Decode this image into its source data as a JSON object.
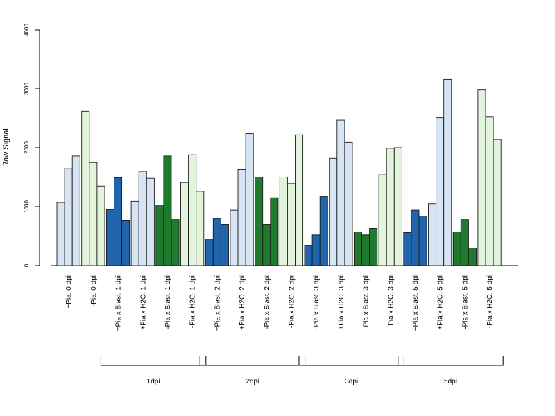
{
  "chart_data": {
    "type": "bar",
    "title": "",
    "xlabel": "",
    "ylabel": "Raw Signal",
    "ylim": [
      0,
      4000
    ],
    "yticks": [
      "0",
      "1000",
      "2000",
      "3000",
      "4000"
    ],
    "grid": false,
    "legend": "none",
    "colors": {
      "plus_pia_blast": "#2166ac",
      "plus_pia_h2o": "#d6e4f4",
      "minus_pia_blast": "#1f7a2e",
      "minus_pia_h2o": "#e2f5dc",
      "edge": "#1a1a1a"
    },
    "groups": [
      {
        "label": "+Pia, 0 dpi",
        "color": "plus_pia_h2o",
        "values": [
          1070,
          1650,
          1860
        ]
      },
      {
        "label": "-Pia, 0 dpi",
        "color": "minus_pia_h2o",
        "values": [
          2620,
          1750,
          1350
        ]
      },
      {
        "label": "+Pia x Blast, 1 dpi",
        "color": "plus_pia_blast",
        "values": [
          950,
          1490,
          760
        ]
      },
      {
        "label": "+Pia x H2O, 1 dpi",
        "color": "plus_pia_h2o",
        "values": [
          1090,
          1600,
          1480
        ]
      },
      {
        "label": "-Pia x Blast, 1 dpi",
        "color": "minus_pia_blast",
        "values": [
          1030,
          1860,
          780
        ]
      },
      {
        "label": "-Pia x H2O, 1 dpi",
        "color": "minus_pia_h2o",
        "values": [
          1410,
          1880,
          1260
        ]
      },
      {
        "label": "+Pia x Blast, 2 dpi",
        "color": "plus_pia_blast",
        "values": [
          450,
          800,
          700
        ]
      },
      {
        "label": "+Pia x H2O, 2 dpi",
        "color": "plus_pia_h2o",
        "values": [
          940,
          1630,
          2240
        ]
      },
      {
        "label": "-Pia x Blast, 2 dpi",
        "color": "minus_pia_blast",
        "values": [
          1500,
          700,
          1150
        ]
      },
      {
        "label": "-Pia x H2O, 2 dpi",
        "color": "minus_pia_h2o",
        "values": [
          1500,
          1390,
          2220
        ]
      },
      {
        "label": "+Pia x Blast, 3 dpi",
        "color": "plus_pia_blast",
        "values": [
          340,
          520,
          1170
        ]
      },
      {
        "label": "+Pia x H2O, 3 dpi",
        "color": "plus_pia_h2o",
        "values": [
          1820,
          2470,
          2090
        ]
      },
      {
        "label": "-Pia x Blast, 3 dpi",
        "color": "minus_pia_blast",
        "values": [
          570,
          520,
          630
        ]
      },
      {
        "label": "-Pia x H2O, 3 dpi",
        "color": "minus_pia_h2o",
        "values": [
          1540,
          1990,
          2000
        ]
      },
      {
        "label": "+Pia x Blast, 5 dpi",
        "color": "plus_pia_blast",
        "values": [
          560,
          940,
          840
        ]
      },
      {
        "label": "+Pia x H2O, 5 dpi",
        "color": "plus_pia_h2o",
        "values": [
          1050,
          2510,
          3160
        ]
      },
      {
        "label": "-Pia x Blast, 5 dpi",
        "color": "minus_pia_blast",
        "values": [
          570,
          780,
          300
        ]
      },
      {
        "label": "-Pia x H2O, 5 dpi",
        "color": "minus_pia_h2o",
        "values": [
          2980,
          2520,
          2140
        ]
      }
    ],
    "time_brackets": [
      {
        "label": "1dpi",
        "first_group": 2,
        "last_group": 5
      },
      {
        "label": "2dpi",
        "first_group": 6,
        "last_group": 9
      },
      {
        "label": "3dpi",
        "first_group": 10,
        "last_group": 13
      },
      {
        "label": "5dpi",
        "first_group": 14,
        "last_group": 17
      }
    ]
  }
}
